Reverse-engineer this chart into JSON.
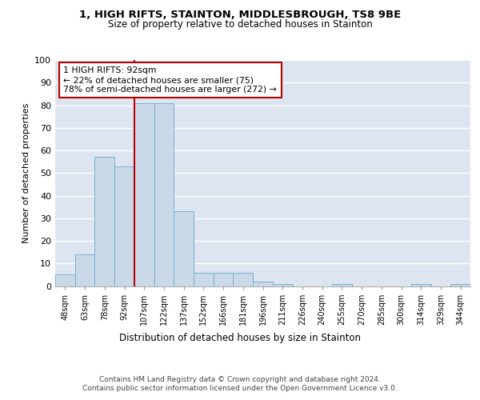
{
  "title1": "1, HIGH RIFTS, STAINTON, MIDDLESBROUGH, TS8 9BE",
  "title2": "Size of property relative to detached houses in Stainton",
  "xlabel": "Distribution of detached houses by size in Stainton",
  "ylabel": "Number of detached properties",
  "bar_labels": [
    "48sqm",
    "63sqm",
    "78sqm",
    "92sqm",
    "107sqm",
    "122sqm",
    "137sqm",
    "152sqm",
    "166sqm",
    "181sqm",
    "196sqm",
    "211sqm",
    "226sqm",
    "240sqm",
    "255sqm",
    "270sqm",
    "285sqm",
    "300sqm",
    "314sqm",
    "329sqm",
    "344sqm"
  ],
  "bar_values": [
    5,
    14,
    57,
    53,
    81,
    81,
    33,
    6,
    6,
    6,
    2,
    1,
    0,
    0,
    1,
    0,
    0,
    0,
    1,
    0,
    1
  ],
  "bar_color": "#c9d9e8",
  "bar_edge_color": "#7bafd4",
  "background_color": "#dde6f0",
  "grid_color": "#ffffff",
  "vline_color": "#c00000",
  "annotation_text": "1 HIGH RIFTS: 92sqm\n← 22% of detached houses are smaller (75)\n78% of semi-detached houses are larger (272) →",
  "annotation_box_color": "#ffffff",
  "annotation_box_edge_color": "#c00000",
  "ylim": [
    0,
    100
  ],
  "yticks": [
    0,
    10,
    20,
    30,
    40,
    50,
    60,
    70,
    80,
    90,
    100
  ],
  "footer": "Contains HM Land Registry data © Crown copyright and database right 2024.\nContains public sector information licensed under the Open Government Licence v3.0.",
  "vline_bar_index": 3
}
